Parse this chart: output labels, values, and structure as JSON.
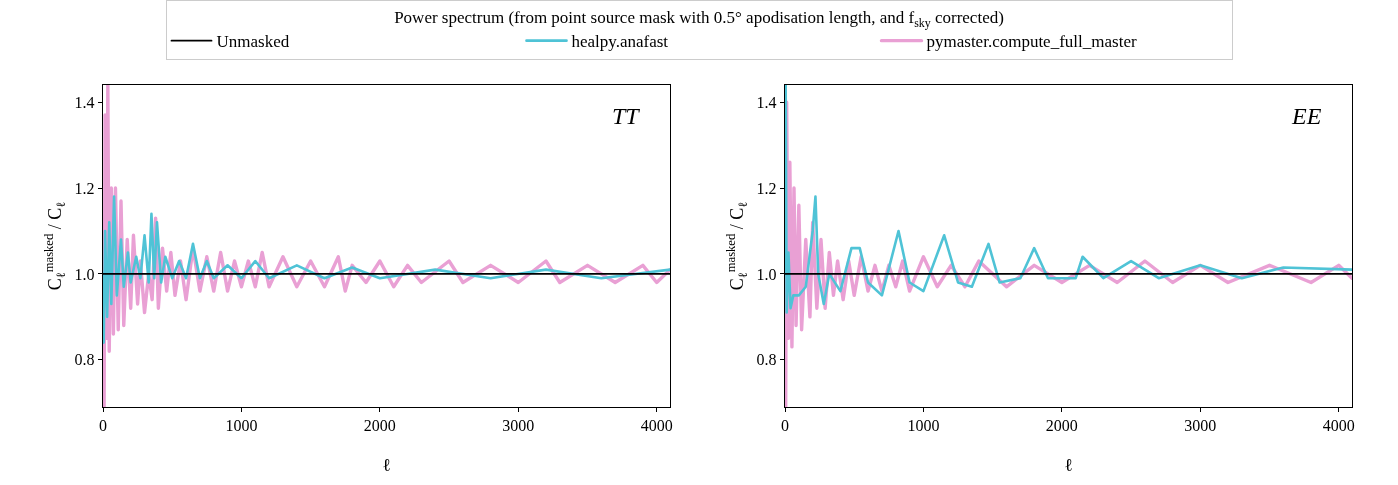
{
  "chart_data": [
    {
      "type": "line",
      "legend_title": "Power spectrum (from point source mask with 0.5° apodisation length, and f$_{sky}$ corrected)",
      "legend": "top",
      "xlabel": "ℓ",
      "ylabel": "C$_{ℓ}$$^{masked}$ / C$_{ℓ}$",
      "annotations": [
        "TT"
      ],
      "xlim": [
        0,
        4096
      ],
      "xticks": [
        0,
        1000,
        2000,
        3000,
        4000
      ],
      "ylim": [
        0.69,
        1.44
      ],
      "yticks": [
        0.8,
        {
          "value": 1,
          "label": "1.0"
        },
        1.2,
        1.4
      ],
      "line_style": "solid",
      "series": [
        {
          "name": "Unmasked",
          "color": "#000000",
          "x": [
            0,
            4096
          ],
          "values": [
            1,
            1
          ]
        },
        {
          "name": "healpy.anafast",
          "color": "#4fc3d6",
          "x": [
            0,
            5,
            15,
            30,
            45,
            60,
            80,
            100,
            130,
            150,
            180,
            200,
            240,
            270,
            300,
            330,
            350,
            370,
            390,
            420,
            450,
            500,
            550,
            600,
            650,
            700,
            750,
            800,
            900,
            1000,
            1100,
            1200,
            1400,
            1600,
            1800,
            2000,
            2400,
            2800,
            3200,
            3600,
            4096
          ],
          "values": [
            1.0,
            0.84,
            1.1,
            0.9,
            1.12,
            0.93,
            1.18,
            0.95,
            1.08,
            0.97,
            1.05,
            0.98,
            1.04,
            0.99,
            1.09,
            0.98,
            1.14,
            0.99,
            1.12,
            0.98,
            1.04,
            0.99,
            1.03,
            0.99,
            1.07,
            0.99,
            1.03,
            0.99,
            1.02,
            0.99,
            1.03,
            0.99,
            1.02,
            0.99,
            1.015,
            0.99,
            1.01,
            0.99,
            1.01,
            0.99,
            1.01
          ]
        },
        {
          "name": "pymaster.compute_full_master",
          "color": "#e9a0d4",
          "x": [
            0,
            8,
            15,
            25,
            35,
            45,
            60,
            75,
            90,
            110,
            130,
            150,
            175,
            200,
            220,
            250,
            270,
            300,
            330,
            355,
            380,
            400,
            430,
            460,
            490,
            520,
            560,
            600,
            650,
            700,
            750,
            800,
            850,
            900,
            950,
            1000,
            1050,
            1100,
            1150,
            1200,
            1300,
            1400,
            1500,
            1600,
            1700,
            1750,
            1800,
            1900,
            2000,
            2100,
            2200,
            2300,
            2500,
            2600,
            2800,
            3000,
            3200,
            3300,
            3500,
            3700,
            3900,
            4000,
            4096
          ],
          "values": [
            1.0,
            0.69,
            1.37,
            0.85,
            1.44,
            0.82,
            1.2,
            0.86,
            1.2,
            0.87,
            1.17,
            0.88,
            1.08,
            0.92,
            1.09,
            0.93,
            1.03,
            0.91,
            1.0,
            0.94,
            1.13,
            0.92,
            1.06,
            0.96,
            1.05,
            0.95,
            1.03,
            0.94,
            1.06,
            0.96,
            1.04,
            0.96,
            1.05,
            0.96,
            1.03,
            0.97,
            1.03,
            0.97,
            1.05,
            0.97,
            1.04,
            0.97,
            1.03,
            0.97,
            1.04,
            0.96,
            1.02,
            0.98,
            1.03,
            0.97,
            1.02,
            0.98,
            1.03,
            0.98,
            1.02,
            0.98,
            1.03,
            0.98,
            1.02,
            0.98,
            1.02,
            0.98,
            1.01
          ]
        }
      ]
    },
    {
      "type": "line",
      "xlabel": "ℓ",
      "ylabel": "C$_{ℓ}$$^{masked}$ / C$_{ℓ}$",
      "annotations": [
        "EE"
      ],
      "xlim": [
        0,
        4096
      ],
      "xticks": [
        0,
        1000,
        2000,
        3000,
        4000
      ],
      "ylim": [
        0.69,
        1.44
      ],
      "yticks": [
        0.8,
        {
          "value": 1,
          "label": "1.0"
        },
        1.2,
        1.4
      ],
      "line_style": "solid",
      "series": [
        {
          "color": "#000000",
          "x": [
            0,
            4096
          ],
          "values": [
            1,
            1
          ]
        },
        {
          "color": "#4fc3d6",
          "x": [
            0,
            5,
            12,
            25,
            40,
            60,
            100,
            150,
            200,
            220,
            240,
            280,
            320,
            400,
            480,
            540,
            600,
            700,
            820,
            900,
            1000,
            1150,
            1250,
            1350,
            1470,
            1550,
            1700,
            1800,
            1900,
            2100,
            2150,
            2300,
            2500,
            2700,
            3000,
            3300,
            3600,
            4096
          ],
          "values": [
            1.0,
            1.44,
            0.91,
            1.05,
            0.92,
            0.95,
            0.95,
            0.97,
            1.1,
            1.18,
            1.0,
            0.93,
            1.0,
            0.96,
            1.06,
            1.06,
            0.98,
            0.95,
            1.1,
            0.98,
            0.96,
            1.09,
            0.98,
            0.97,
            1.07,
            0.98,
            0.99,
            1.06,
            0.99,
            0.99,
            1.04,
            0.99,
            1.03,
            0.99,
            1.02,
            0.99,
            1.015,
            1.01
          ]
        },
        {
          "color": "#e9a0d4",
          "x": [
            0,
            5,
            12,
            25,
            35,
            50,
            65,
            80,
            100,
            120,
            150,
            180,
            200,
            230,
            260,
            290,
            320,
            350,
            380,
            420,
            460,
            500,
            550,
            600,
            650,
            700,
            750,
            800,
            850,
            900,
            1000,
            1100,
            1200,
            1300,
            1400,
            1600,
            1800,
            2000,
            2200,
            2400,
            2600,
            2800,
            3000,
            3200,
            3500,
            3800,
            4000,
            4096
          ],
          "values": [
            1.0,
            0.69,
            1.4,
            0.85,
            1.26,
            0.83,
            1.2,
            0.88,
            1.16,
            0.87,
            1.08,
            0.9,
            1.12,
            0.92,
            1.08,
            0.92,
            1.05,
            0.95,
            1.03,
            0.94,
            1.03,
            0.95,
            1.04,
            0.96,
            1.02,
            0.96,
            1.02,
            0.97,
            1.03,
            0.96,
            1.04,
            0.97,
            1.02,
            0.97,
            1.03,
            0.97,
            1.02,
            0.98,
            1.02,
            0.98,
            1.03,
            0.98,
            1.02,
            0.98,
            1.02,
            0.98,
            1.02,
            0.99
          ]
        }
      ]
    }
  ]
}
